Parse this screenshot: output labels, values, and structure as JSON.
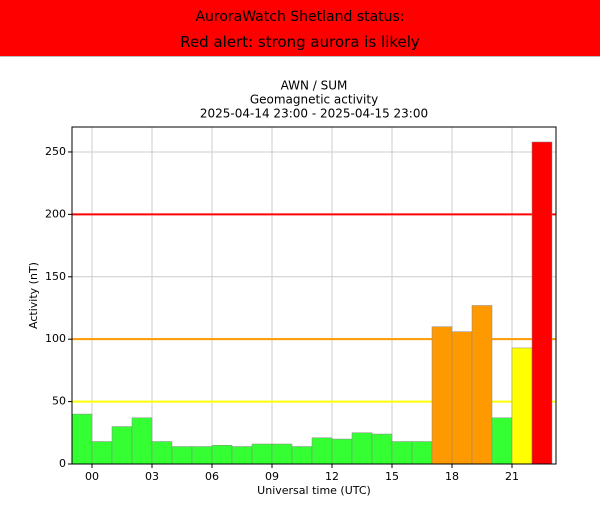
{
  "banner": {
    "title": "AuroraWatch Shetland status:",
    "status": "Red alert: strong aurora is likely",
    "color": "#ff0000"
  },
  "chart_data": {
    "type": "bar",
    "title": [
      "AWN / SUM",
      "Geomagnetic activity",
      "2025-04-14 23:00 - 2025-04-15 23:00"
    ],
    "x_label": "Universal time (UTC)",
    "y_label": "Activity (nT)",
    "x": [
      -1,
      0,
      1,
      2,
      3,
      4,
      5,
      6,
      7,
      8,
      9,
      10,
      11,
      12,
      13,
      14,
      15,
      16,
      17,
      18,
      19,
      20,
      21,
      22
    ],
    "values": [
      40,
      18,
      30,
      37,
      18,
      14,
      14,
      15,
      14,
      16,
      16,
      14,
      21,
      20,
      25,
      24,
      18,
      18,
      110,
      106,
      127,
      37,
      93,
      258
    ],
    "colors": [
      "#33ff33",
      "#33ff33",
      "#33ff33",
      "#33ff33",
      "#33ff33",
      "#33ff33",
      "#33ff33",
      "#33ff33",
      "#33ff33",
      "#33ff33",
      "#33ff33",
      "#33ff33",
      "#33ff33",
      "#33ff33",
      "#33ff33",
      "#33ff33",
      "#33ff33",
      "#33ff33",
      "#ff9900",
      "#ff9900",
      "#ff9900",
      "#33ff33",
      "#ffff00",
      "#ff0000"
    ],
    "bar_width": 1,
    "thresholds": [
      {
        "value": 50,
        "color": "#ffff00"
      },
      {
        "value": 100,
        "color": "#ff9900"
      },
      {
        "value": 200,
        "color": "#ff0000"
      }
    ],
    "xlim": [
      -1,
      23.2
    ],
    "ylim": [
      0,
      270
    ],
    "xticks": [
      {
        "value": 0,
        "label": "00"
      },
      {
        "value": 3,
        "label": "03"
      },
      {
        "value": 6,
        "label": "06"
      },
      {
        "value": 9,
        "label": "09"
      },
      12,
      15,
      18,
      21
    ],
    "yticks": [
      0,
      50,
      100,
      150,
      200,
      250
    ],
    "grid": true
  }
}
